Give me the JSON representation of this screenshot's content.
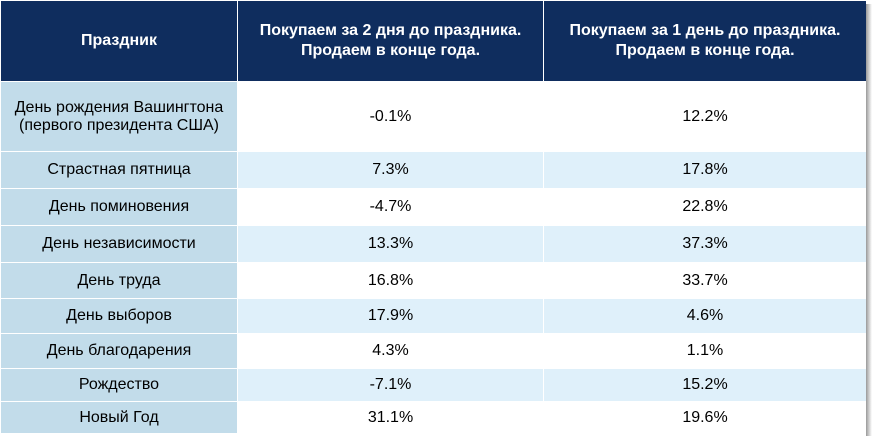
{
  "header": {
    "col_holiday": "Праздник",
    "col_two_days": "Покупаем за 2 дня до праздника. Продаем в конце года.",
    "col_one_day": "Покупаем за 1 день до праздника. Продаем в конце года."
  },
  "rows": [
    {
      "holiday": "День рождения Вашингтона (первого президента США)",
      "two_days": "-0.1%",
      "one_day": "12.2%"
    },
    {
      "holiday": "Страстная пятница",
      "two_days": "7.3%",
      "one_day": "17.8%"
    },
    {
      "holiday": "День поминовения",
      "two_days": "-4.7%",
      "one_day": "22.8%"
    },
    {
      "holiday": "День независимости",
      "two_days": "13.3%",
      "one_day": "37.3%"
    },
    {
      "holiday": "День труда",
      "two_days": "16.8%",
      "one_day": "33.7%"
    },
    {
      "holiday": "День выборов",
      "two_days": "17.9%",
      "one_day": "4.6%"
    },
    {
      "holiday": "День благодарения",
      "two_days": "4.3%",
      "one_day": "1.1%"
    },
    {
      "holiday": "Рождество",
      "two_days": "-7.1%",
      "one_day": "15.2%"
    },
    {
      "holiday": "Новый Год",
      "two_days": "31.1%",
      "one_day": "19.6%"
    }
  ],
  "colors": {
    "header_bg": "#0f2d5e",
    "holiday_cell_bg": "#c2dcea",
    "alt_row_bg": "#dff0fa"
  }
}
